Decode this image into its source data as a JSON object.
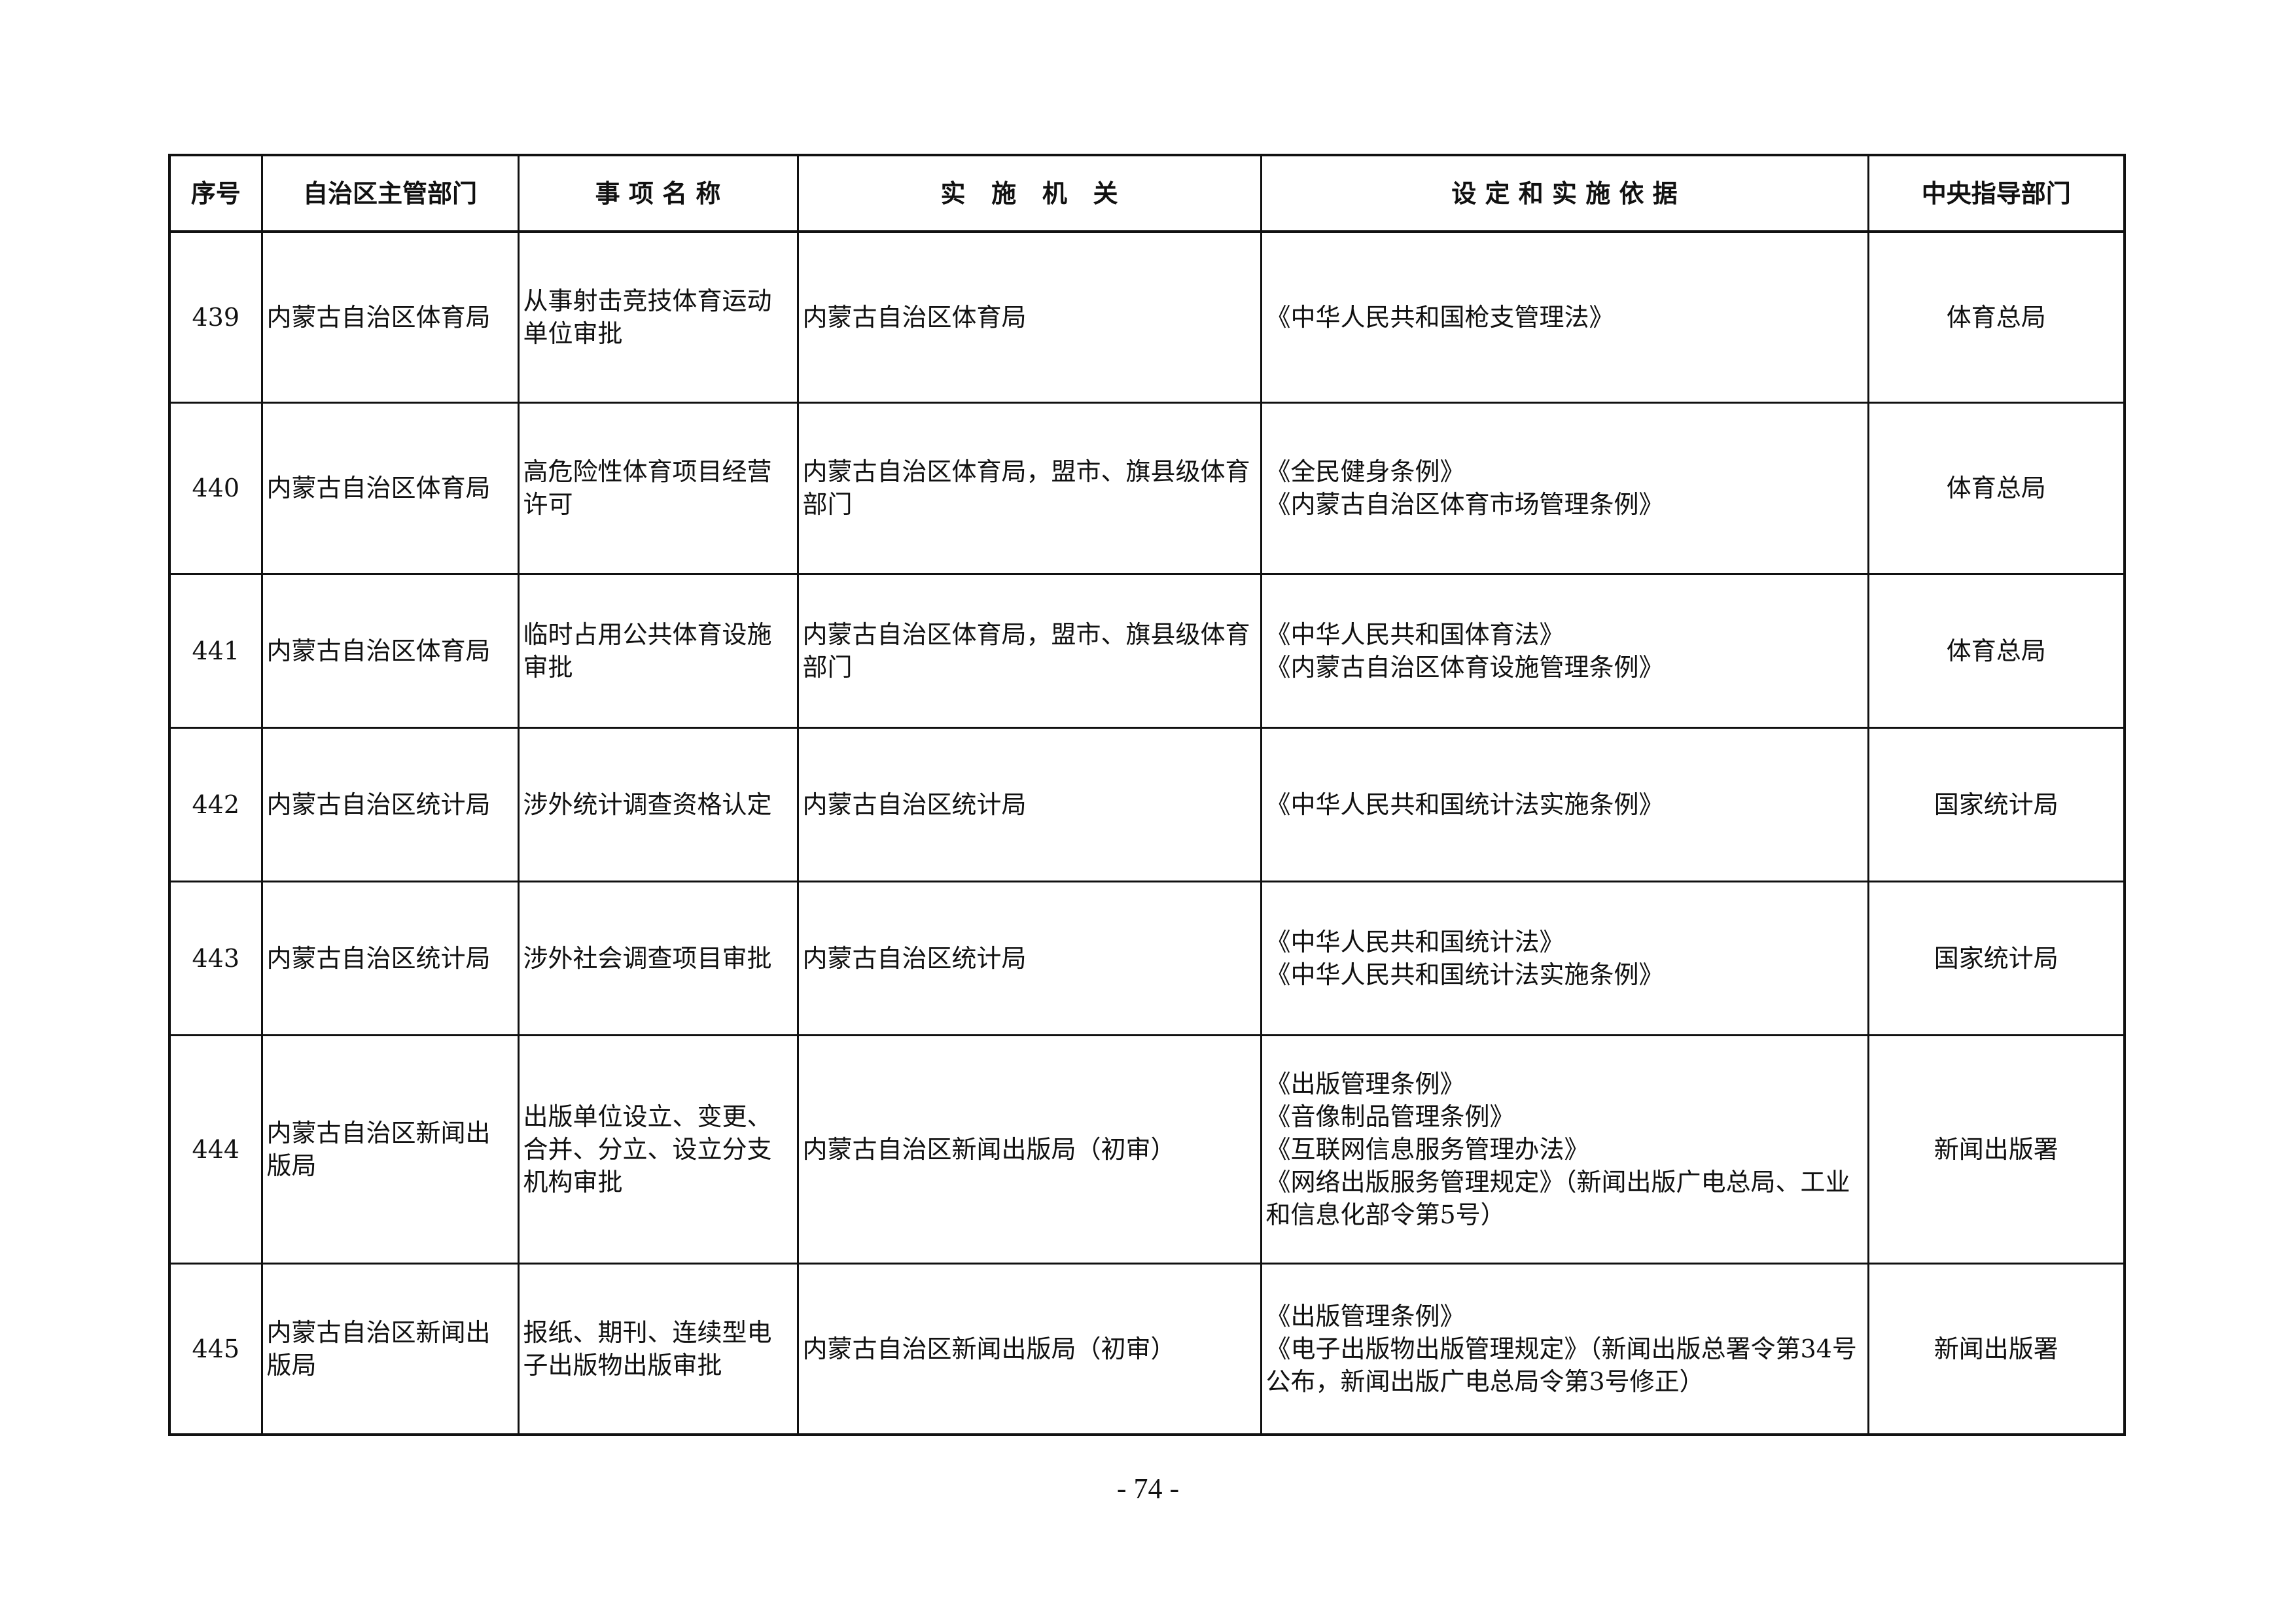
{
  "table": {
    "headers": [
      "序号",
      "自治区主管部门",
      "事 项 名 称",
      "实   施   机   关",
      "设 定 和 实 施 依 据",
      "中央指导部门"
    ],
    "rows": [
      [
        "439",
        "内蒙古自治区体育局",
        "从事射击竞技体育运动单位审批",
        "内蒙古自治区体育局",
        "《中华人民共和国枪支管理法》",
        "体育总局"
      ],
      [
        "440",
        "内蒙古自治区体育局",
        "高危险性体育项目经营许可",
        "内蒙古自治区体育局，盟市、旗县级体育部门",
        "《全民健身条例》\n《内蒙古自治区体育市场管理条例》",
        "体育总局"
      ],
      [
        "441",
        "内蒙古自治区体育局",
        "临时占用公共体育设施审批",
        "内蒙古自治区体育局，盟市、旗县级体育部门",
        "《中华人民共和国体育法》\n《内蒙古自治区体育设施管理条例》",
        "体育总局"
      ],
      [
        "442",
        "内蒙古自治区统计局",
        "涉外统计调查资格认定",
        "内蒙古自治区统计局",
        "《中华人民共和国统计法实施条例》",
        "国家统计局"
      ],
      [
        "443",
        "内蒙古自治区统计局",
        "涉外社会调查项目审批",
        "内蒙古自治区统计局",
        "《中华人民共和国统计法》\n《中华人民共和国统计法实施条例》",
        "国家统计局"
      ],
      [
        "444",
        "内蒙古自治区新闻出版局",
        "出版单位设立、变更、合并、分立、设立分支机构审批",
        "内蒙古自治区新闻出版局（初审）",
        "《出版管理条例》\n《音像制品管理条例》\n《互联网信息服务管理办法》\n《网络出版服务管理规定》（新闻出版广电总局、工业和信息化部令第5号）",
        "新闻出版署"
      ],
      [
        "445",
        "内蒙古自治区新闻出版局",
        "报纸、期刊、连续型电子出版物出版审批",
        "内蒙古自治区新闻出版局（初审）",
        "《出版管理条例》\n《电子出版物出版管理规定》（新闻出版总署令第34号公布，新闻出版广电总局令第3号修正）",
        "新闻出版署"
      ]
    ]
  },
  "footer": {
    "page_number": "- 74 -"
  }
}
